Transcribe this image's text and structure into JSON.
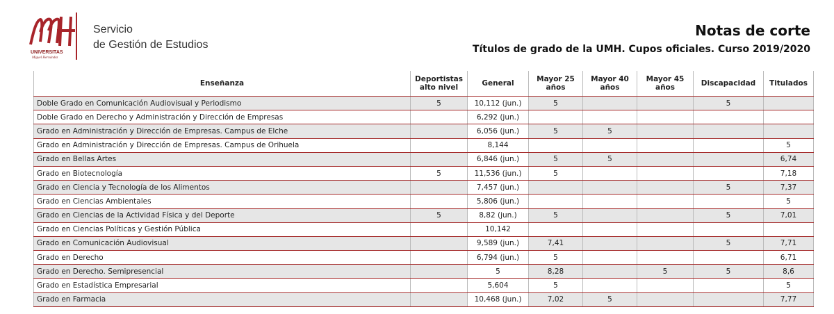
{
  "logo": {
    "name": "UNIVERSITAS",
    "subname": "Miguel Hernández"
  },
  "header": {
    "service_line1": "Servicio",
    "service_line2": "de Gestión de Estudios",
    "title": "Notas de corte",
    "subtitle": "Títulos de grado de la UMH. Cupos oficiales. Curso 2019/2020"
  },
  "table": {
    "columns": [
      "Enseñanza",
      "Deportistas alto nivel",
      "General",
      "Mayor 25 años",
      "Mayor 40 años",
      "Mayor 45 años",
      "Discapacidad",
      "Titulados"
    ],
    "rows": [
      [
        "Doble Grado en Comunicación Audiovisual y Periodismo",
        "5",
        "10,112 (jun.)",
        "5",
        null,
        null,
        "5",
        null
      ],
      [
        "Doble Grado en Derecho y Administración y Dirección de Empresas",
        null,
        "6,292 (jun.)",
        null,
        null,
        null,
        null,
        null
      ],
      [
        "Grado en Administración y Dirección de Empresas. Campus de Elche",
        null,
        "6,056 (jun.)",
        "5",
        "5",
        null,
        null,
        null
      ],
      [
        "Grado en Administración y Dirección de Empresas. Campus de Orihuela",
        null,
        "8,144",
        null,
        null,
        null,
        null,
        "5"
      ],
      [
        "Grado en Bellas Artes",
        null,
        "6,846 (jun.)",
        "5",
        "5",
        null,
        null,
        "6,74"
      ],
      [
        "Grado en Biotecnología",
        "5",
        "11,536 (jun.)",
        "5",
        null,
        null,
        null,
        "7,18"
      ],
      [
        "Grado en Ciencia y Tecnología de los Alimentos",
        null,
        "7,457 (jun.)",
        null,
        null,
        null,
        "5",
        "7,37"
      ],
      [
        "Grado en Ciencias Ambientales",
        null,
        "5,806 (jun.)",
        null,
        null,
        null,
        null,
        "5"
      ],
      [
        "Grado en Ciencias de la Actividad Física y del Deporte",
        "5",
        "8,82 (jun.)",
        "5",
        null,
        null,
        "5",
        "7,01"
      ],
      [
        "Grado en Ciencias Políticas y Gestión Pública",
        null,
        "10,142",
        null,
        null,
        null,
        null,
        null
      ],
      [
        "Grado en Comunicación Audiovisual",
        null,
        "9,589 (jun.)",
        "7,41",
        null,
        null,
        "5",
        "7,71"
      ],
      [
        "Grado en Derecho",
        null,
        "6,794 (jun.)",
        "5",
        null,
        null,
        null,
        "6,71"
      ],
      [
        "Grado en Derecho. Semipresencial",
        null,
        "5",
        "8,28",
        null,
        "5",
        "5",
        "8,6"
      ],
      [
        "Grado en Estadística Empresarial",
        null,
        "5,604",
        "5",
        null,
        null,
        null,
        "5"
      ],
      [
        "Grado en Farmacia",
        null,
        "10,468 (jun.)",
        "7,02",
        "5",
        null,
        null,
        "7,77"
      ]
    ]
  }
}
